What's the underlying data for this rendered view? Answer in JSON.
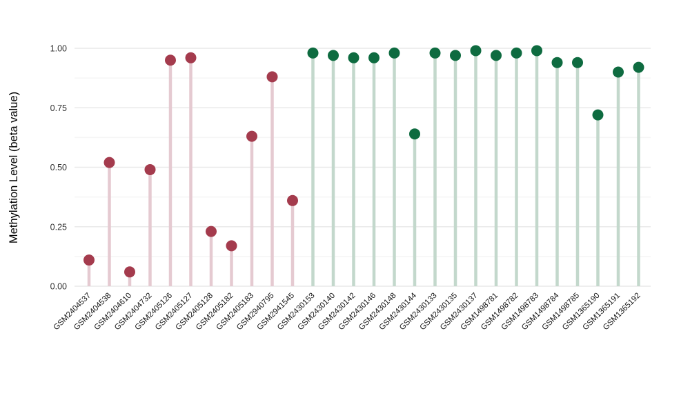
{
  "figure": {
    "background": "#ffffff",
    "title": "",
    "legend": "none"
  },
  "chart_data": {
    "type": "scatter",
    "variant": "lollipop-stem",
    "title": "",
    "xlabel": "",
    "ylabel": "Methylation Level (beta value)",
    "ylim": [
      0,
      1
    ],
    "yticks": [
      0,
      0.25,
      0.5,
      0.75,
      1.0
    ],
    "ytick_labels": [
      "0.00",
      "0.25",
      "0.50",
      "0.75",
      "1.00"
    ],
    "minor_gridlines": [
      0.125,
      0.375,
      0.625,
      0.875
    ],
    "grid": "horizontal major and minor, light gray, no axis lines, white panel",
    "x_tick_angle_deg": 45,
    "groups": {
      "maroon": {
        "dot_color": "#a43b4d",
        "stem_color": "#e5cad1"
      },
      "green": {
        "dot_color": "#0e6b40",
        "stem_color": "#c3d8cc"
      }
    },
    "gridline_colors": {
      "major": "#e9e9e9",
      "minor": "#f5f5f5"
    },
    "points": [
      {
        "label": "GSM2404537",
        "value": 0.11,
        "group": "maroon"
      },
      {
        "label": "GSM2404538",
        "value": 0.52,
        "group": "maroon"
      },
      {
        "label": "GSM2404610",
        "value": 0.06,
        "group": "maroon"
      },
      {
        "label": "GSM2404732",
        "value": 0.49,
        "group": "maroon"
      },
      {
        "label": "GSM2405126",
        "value": 0.95,
        "group": "maroon"
      },
      {
        "label": "GSM2405127",
        "value": 0.96,
        "group": "maroon"
      },
      {
        "label": "GSM2405128",
        "value": 0.23,
        "group": "maroon"
      },
      {
        "label": "GSM2405182",
        "value": 0.17,
        "group": "maroon"
      },
      {
        "label": "GSM2405183",
        "value": 0.63,
        "group": "maroon"
      },
      {
        "label": "GSM2940795",
        "value": 0.88,
        "group": "maroon"
      },
      {
        "label": "GSM2941545",
        "value": 0.36,
        "group": "maroon"
      },
      {
        "label": "GSM2430153",
        "value": 0.98,
        "group": "green"
      },
      {
        "label": "GSM2430140",
        "value": 0.97,
        "group": "green"
      },
      {
        "label": "GSM2430142",
        "value": 0.96,
        "group": "green"
      },
      {
        "label": "GSM2430146",
        "value": 0.96,
        "group": "green"
      },
      {
        "label": "GSM2430148",
        "value": 0.98,
        "group": "green"
      },
      {
        "label": "GSM2430144",
        "value": 0.64,
        "group": "green"
      },
      {
        "label": "GSM2430133",
        "value": 0.98,
        "group": "green"
      },
      {
        "label": "GSM2430135",
        "value": 0.97,
        "group": "green"
      },
      {
        "label": "GSM2430137",
        "value": 0.99,
        "group": "green"
      },
      {
        "label": "GSM1498781",
        "value": 0.97,
        "group": "green"
      },
      {
        "label": "GSM1498782",
        "value": 0.98,
        "group": "green"
      },
      {
        "label": "GSM1498783",
        "value": 0.99,
        "group": "green"
      },
      {
        "label": "GSM1498784",
        "value": 0.94,
        "group": "green"
      },
      {
        "label": "GSM1498785",
        "value": 0.94,
        "group": "green"
      },
      {
        "label": "GSM1365190",
        "value": 0.72,
        "group": "green"
      },
      {
        "label": "GSM1365191",
        "value": 0.9,
        "group": "green"
      },
      {
        "label": "GSM1365192",
        "value": 0.92,
        "group": "green"
      }
    ]
  }
}
